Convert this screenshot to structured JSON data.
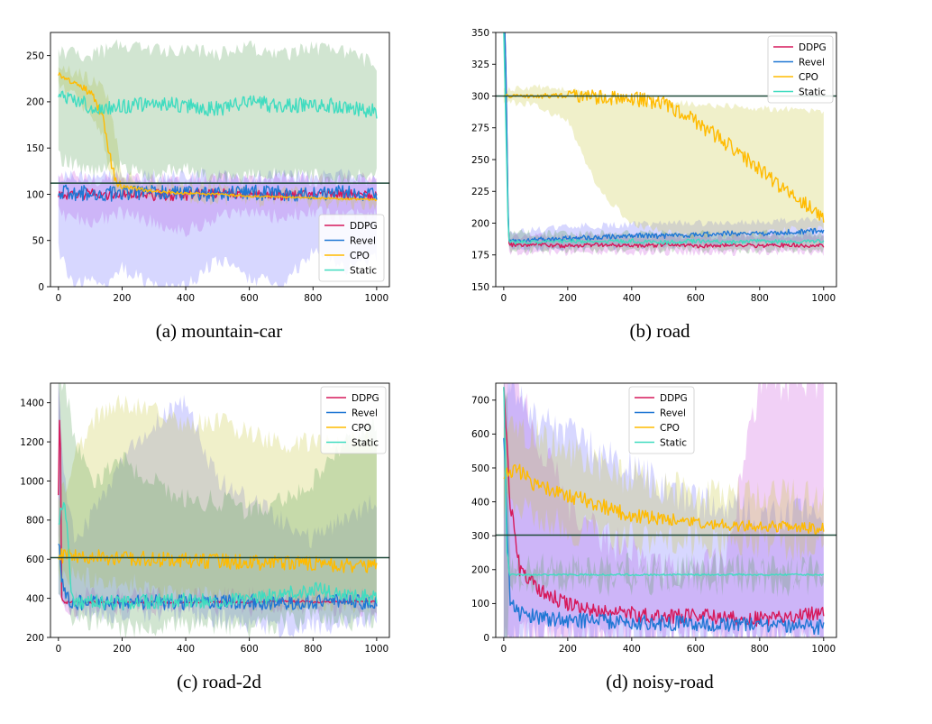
{
  "chart_data": [
    {
      "type": "line",
      "caption": "(a) mountain-car",
      "xlim": [
        -25,
        1040
      ],
      "ylim": [
        0,
        275
      ],
      "xticks": [
        0,
        200,
        400,
        600,
        800,
        1000
      ],
      "yticks": [
        0,
        50,
        100,
        150,
        200,
        250
      ],
      "legend_position": "lower-right",
      "hline": 112,
      "series": [
        {
          "name": "DDPG",
          "color": "#d6195b",
          "x": [
            0,
            50,
            100,
            150,
            200,
            300,
            400,
            500,
            600,
            700,
            800,
            900,
            1000
          ],
          "y": [
            100,
            98,
            101,
            99,
            100,
            99,
            100,
            101,
            100,
            99,
            100,
            100,
            98
          ],
          "band_lo": [
            80,
            75,
            70,
            75,
            80,
            70,
            60,
            75,
            80,
            75,
            80,
            75,
            80
          ],
          "band_hi": [
            118,
            118,
            115,
            118,
            115,
            118,
            115,
            118,
            115,
            118,
            115,
            118,
            115
          ]
        },
        {
          "name": "Revel",
          "color": "#1f77d4",
          "x": [
            0,
            50,
            100,
            150,
            200,
            300,
            400,
            500,
            600,
            700,
            800,
            900,
            1000
          ],
          "y": [
            104,
            100,
            102,
            101,
            100,
            102,
            101,
            100,
            102,
            101,
            100,
            102,
            101
          ],
          "band_lo": [
            40,
            0,
            10,
            0,
            20,
            0,
            0,
            30,
            10,
            0,
            40,
            20,
            30
          ],
          "band_hi": [
            120,
            120,
            118,
            120,
            118,
            120,
            118,
            120,
            118,
            120,
            118,
            120,
            118
          ]
        },
        {
          "name": "CPO",
          "color": "#ffbb00",
          "x": [
            0,
            50,
            100,
            140,
            160,
            180,
            200,
            300,
            400,
            500,
            600,
            700,
            800,
            900,
            1000
          ],
          "y": [
            230,
            220,
            210,
            185,
            140,
            115,
            108,
            103,
            101,
            100,
            98,
            97,
            96,
            95,
            94
          ],
          "band_lo": [
            215,
            205,
            190,
            160,
            120,
            105,
            100,
            97,
            96,
            95,
            94,
            93,
            92,
            91,
            90
          ],
          "band_hi": [
            235,
            230,
            225,
            215,
            200,
            160,
            120,
            110,
            107,
            105,
            103,
            102,
            100,
            99,
            98
          ]
        },
        {
          "name": "Static",
          "color": "#40dcc0",
          "x": [
            0,
            100,
            200,
            300,
            400,
            500,
            600,
            700,
            800,
            900,
            1000
          ],
          "y": [
            210,
            195,
            195,
            198,
            196,
            192,
            200,
            195,
            197,
            195,
            190
          ],
          "band_lo": [
            140,
            125,
            130,
            120,
            130,
            115,
            120,
            125,
            120,
            115,
            125
          ],
          "band_hi": [
            255,
            250,
            262,
            255,
            258,
            252,
            260,
            250,
            258,
            255,
            240
          ]
        }
      ]
    },
    {
      "type": "line",
      "caption": "(b) road",
      "xlim": [
        -25,
        1040
      ],
      "ylim": [
        150,
        350
      ],
      "xticks": [
        0,
        200,
        400,
        600,
        800,
        1000
      ],
      "yticks": [
        150,
        175,
        200,
        225,
        250,
        275,
        300,
        325,
        350
      ],
      "legend_position": "top-right",
      "hline": 300,
      "series": [
        {
          "name": "DDPG",
          "color": "#d6195b",
          "x": [
            0,
            5,
            15,
            100,
            200,
            300,
            400,
            500,
            600,
            700,
            800,
            900,
            1000
          ],
          "y": [
            350,
            350,
            183,
            183,
            182,
            183,
            182,
            183,
            182,
            183,
            182,
            183,
            182
          ],
          "band_lo": [
            350,
            350,
            177,
            177,
            177,
            177,
            177,
            177,
            177,
            177,
            177,
            177,
            177
          ],
          "band_hi": [
            350,
            350,
            190,
            190,
            190,
            190,
            190,
            190,
            190,
            190,
            190,
            190,
            190
          ]
        },
        {
          "name": "Revel",
          "color": "#1f77d4",
          "x": [
            0,
            5,
            15,
            100,
            200,
            300,
            400,
            500,
            600,
            700,
            800,
            900,
            1000
          ],
          "y": [
            350,
            350,
            186,
            187,
            188,
            189,
            190,
            190,
            191,
            192,
            192,
            193,
            194
          ],
          "band_lo": [
            350,
            350,
            180,
            180,
            181,
            182,
            182,
            183,
            183,
            184,
            184,
            185,
            185
          ],
          "band_hi": [
            350,
            350,
            193,
            195,
            197,
            198,
            199,
            200,
            200,
            201,
            201,
            202,
            203
          ]
        },
        {
          "name": "CPO",
          "color": "#ffbb00",
          "x": [
            0,
            100,
            200,
            300,
            400,
            500,
            600,
            700,
            800,
            900,
            1000
          ],
          "y": [
            300,
            300,
            301,
            299,
            298,
            294,
            280,
            262,
            242,
            222,
            205
          ],
          "band_lo": [
            295,
            293,
            280,
            225,
            200,
            193,
            190,
            190,
            192,
            195,
            195
          ],
          "band_hi": [
            305,
            307,
            305,
            300,
            296,
            295,
            294,
            292,
            290,
            289,
            287
          ]
        },
        {
          "name": "Static",
          "color": "#40dcc0",
          "x": [
            0,
            15,
            100,
            200,
            300,
            400,
            500,
            600,
            700,
            800,
            900,
            1000
          ],
          "y": [
            350,
            185,
            185,
            186,
            185,
            186,
            185,
            186,
            185,
            186,
            185,
            186
          ],
          "band_lo": [
            350,
            179,
            179,
            179,
            179,
            179,
            179,
            179,
            179,
            179,
            179,
            179
          ],
          "band_hi": [
            350,
            192,
            192,
            192,
            192,
            192,
            192,
            192,
            192,
            192,
            192,
            192
          ]
        }
      ]
    },
    {
      "type": "line",
      "caption": "(c) road-2d",
      "xlim": [
        -25,
        1040
      ],
      "ylim": [
        200,
        1500
      ],
      "xticks": [
        0,
        200,
        400,
        600,
        800,
        1000
      ],
      "yticks": [
        200,
        400,
        600,
        800,
        1000,
        1200,
        1400
      ],
      "legend_position": "top-right",
      "hline": 608,
      "series": [
        {
          "name": "DDPG",
          "color": "#d6195b",
          "x": [
            0,
            5,
            10,
            20,
            50,
            100,
            200,
            300,
            400,
            500,
            600,
            700,
            800,
            900,
            1000
          ],
          "y": [
            950,
            1500,
            400,
            380,
            380,
            380,
            378,
            380,
            379,
            382,
            380,
            385,
            382,
            383,
            385
          ],
          "band_lo": [
            700,
            700,
            360,
            360,
            360,
            360,
            360,
            360,
            360,
            360,
            360,
            360,
            360,
            360,
            360
          ],
          "band_hi": [
            1500,
            1500,
            500,
            420,
            410,
            405,
            405,
            405,
            405,
            405,
            405,
            405,
            405,
            405,
            405
          ]
        },
        {
          "name": "Revel",
          "color": "#1f77d4",
          "x": [
            0,
            10,
            30,
            50,
            100,
            200,
            300,
            400,
            500,
            600,
            700,
            800,
            900,
            1000
          ],
          "y": [
            700,
            500,
            400,
            380,
            378,
            378,
            380,
            379,
            380,
            381,
            380,
            382,
            381,
            380
          ],
          "band_lo": [
            400,
            350,
            340,
            340,
            330,
            330,
            320,
            330,
            300,
            260,
            250,
            260,
            280,
            300
          ],
          "band_hi": [
            1500,
            1200,
            900,
            700,
            800,
            1100,
            1300,
            1400,
            1000,
            900,
            800,
            700,
            800,
            900
          ]
        },
        {
          "name": "CPO",
          "color": "#ffbb00",
          "x": [
            0,
            100,
            200,
            300,
            400,
            500,
            600,
            700,
            800,
            900,
            1000
          ],
          "y": [
            620,
            610,
            605,
            600,
            595,
            590,
            585,
            580,
            575,
            570,
            565
          ],
          "band_lo": [
            520,
            500,
            480,
            450,
            420,
            400,
            380,
            380,
            380,
            380,
            380
          ],
          "band_hi": [
            900,
            1300,
            1400,
            1350,
            1300,
            1300,
            1250,
            1200,
            1200,
            1200,
            1200
          ]
        },
        {
          "name": "Static",
          "color": "#40dcc0",
          "x": [
            0,
            20,
            40,
            50,
            100,
            200,
            300,
            400,
            500,
            600,
            700,
            800,
            900,
            1000
          ],
          "y": [
            800,
            900,
            450,
            385,
            380,
            380,
            385,
            390,
            390,
            400,
            420,
            450,
            420,
            400
          ],
          "band_lo": [
            400,
            400,
            300,
            300,
            280,
            250,
            240,
            260,
            250,
            250,
            280,
            300,
            280,
            300
          ],
          "band_hi": [
            1500,
            1500,
            1300,
            1200,
            1000,
            1100,
            1000,
            900,
            900,
            850,
            900,
            1000,
            1200,
            1300
          ]
        }
      ]
    },
    {
      "type": "line",
      "caption": "(d) noisy-road",
      "xlim": [
        -25,
        1040
      ],
      "ylim": [
        0,
        750
      ],
      "xticks": [
        0,
        200,
        400,
        600,
        800,
        1000
      ],
      "yticks": [
        0,
        100,
        200,
        300,
        400,
        500,
        600,
        700
      ],
      "legend_position": "top-center",
      "hline": 302,
      "series": [
        {
          "name": "DDPG",
          "color": "#d6195b",
          "x": [
            0,
            20,
            50,
            100,
            150,
            200,
            300,
            400,
            500,
            600,
            700,
            800,
            850,
            900,
            1000
          ],
          "y": [
            750,
            400,
            200,
            150,
            120,
            100,
            80,
            70,
            60,
            65,
            60,
            55,
            60,
            65,
            70
          ],
          "band_lo": [
            0,
            0,
            0,
            0,
            0,
            0,
            0,
            0,
            0,
            0,
            0,
            0,
            0,
            0,
            0
          ],
          "band_hi": [
            750,
            750,
            750,
            600,
            500,
            400,
            300,
            250,
            200,
            200,
            250,
            750,
            750,
            750,
            750
          ]
        },
        {
          "name": "Revel",
          "color": "#1f77d4",
          "x": [
            0,
            20,
            50,
            100,
            200,
            300,
            400,
            500,
            600,
            700,
            800,
            900,
            1000
          ],
          "y": [
            600,
            100,
            70,
            60,
            50,
            48,
            45,
            43,
            42,
            40,
            38,
            35,
            30
          ],
          "band_lo": [
            0,
            0,
            0,
            0,
            0,
            0,
            0,
            0,
            0,
            0,
            0,
            0,
            0
          ],
          "band_hi": [
            750,
            750,
            700,
            650,
            600,
            550,
            500,
            450,
            400,
            380,
            360,
            360,
            360
          ]
        },
        {
          "name": "CPO",
          "color": "#ffbb00",
          "x": [
            0,
            50,
            100,
            200,
            300,
            400,
            500,
            600,
            700,
            800,
            900,
            1000
          ],
          "y": [
            480,
            490,
            450,
            420,
            390,
            360,
            350,
            340,
            330,
            330,
            325,
            320
          ],
          "band_lo": [
            400,
            380,
            370,
            330,
            310,
            290,
            290,
            285,
            285,
            280,
            280,
            280
          ],
          "band_hi": [
            600,
            620,
            600,
            550,
            500,
            470,
            440,
            430,
            420,
            420,
            420,
            420
          ]
        },
        {
          "name": "Static",
          "color": "#40dcc0",
          "x": [
            0,
            10,
            20,
            50,
            100,
            200,
            300,
            400,
            500,
            600,
            700,
            800,
            900,
            1000
          ],
          "y": [
            750,
            250,
            185,
            185,
            185,
            185,
            185,
            185,
            185,
            185,
            185,
            185,
            185,
            185
          ],
          "band_lo": [
            0,
            0,
            175,
            175,
            175,
            175,
            175,
            175,
            175,
            175,
            175,
            175,
            175,
            175
          ],
          "band_hi": [
            750,
            750,
            195,
            195,
            195,
            195,
            195,
            195,
            195,
            195,
            195,
            195,
            195,
            195
          ]
        }
      ]
    }
  ]
}
